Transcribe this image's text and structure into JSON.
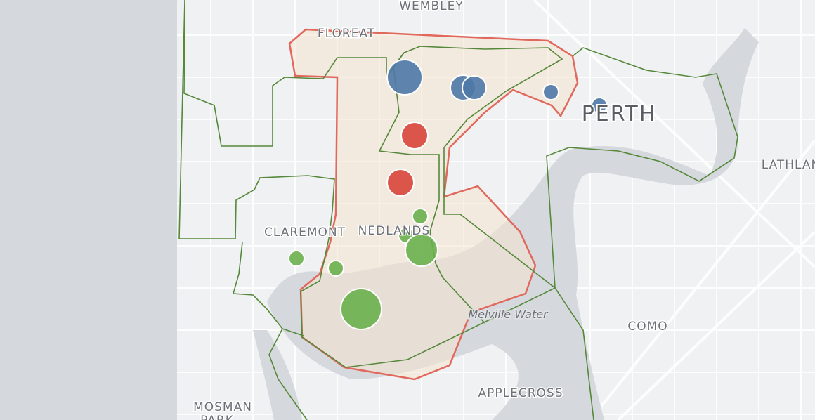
{
  "map": {
    "labels": {
      "wembley": "WEMBLEY",
      "floreat": "FLOREAT",
      "perth": "PERTH",
      "lathlain": "LATHLAN",
      "claremont": "CLAREMONT",
      "nedlands": "NEDLANDS",
      "melville_water": "Melville Water",
      "como": "COMO",
      "applecross": "APPLECROSS",
      "mosman": "MOSMAN",
      "park": "PARK"
    }
  }
}
